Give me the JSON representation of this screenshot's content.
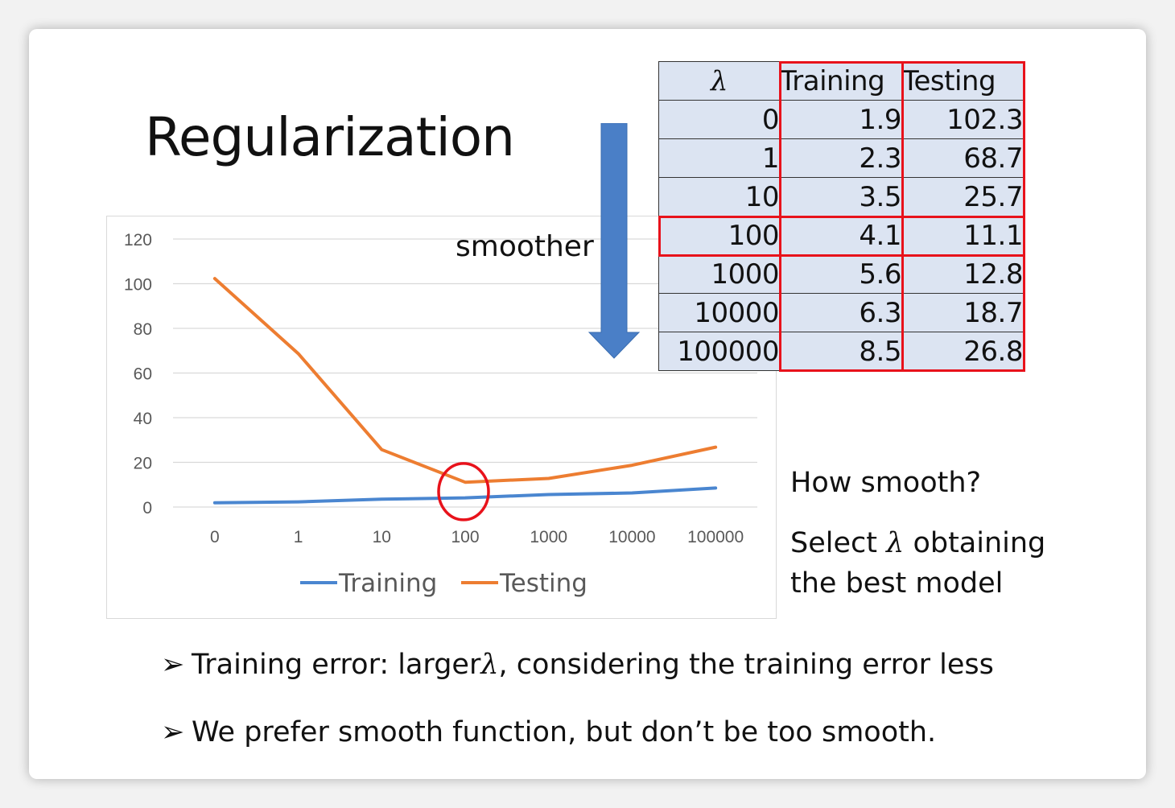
{
  "title": "Regularization",
  "smoother_label": "smoother",
  "table": {
    "headers": [
      "λ",
      "Training",
      "Testing"
    ],
    "rows": [
      [
        "0",
        "1.9",
        "102.3"
      ],
      [
        "1",
        "2.3",
        "68.7"
      ],
      [
        "10",
        "3.5",
        "25.7"
      ],
      [
        "100",
        "4.1",
        "11.1"
      ],
      [
        "1000",
        "5.6",
        "12.8"
      ],
      [
        "10000",
        "6.3",
        "18.7"
      ],
      [
        "100000",
        "8.5",
        "26.8"
      ]
    ],
    "highlighted_row": "100",
    "highlighted_columns": [
      "Training",
      "Testing"
    ]
  },
  "side_question": "How smooth?",
  "side_select": {
    "prefix": "Select",
    "lambda": "λ",
    "suffix": " obtaining",
    "line2": "the best model"
  },
  "bullets": [
    {
      "marker": "➢",
      "text": "Training error: larger",
      "lambda": "λ",
      "rest": ", considering the training error less"
    },
    {
      "marker": "➢",
      "text": "We prefer smooth function, but don’t be too smooth.",
      "lambda": "",
      "rest": ""
    }
  ],
  "colors": {
    "training": "#4a86d0",
    "testing": "#ed7d31",
    "table_fill": "#dce4f2",
    "highlight": "#e8121b",
    "arrow": "#4a7fc7"
  },
  "chart_data": {
    "type": "line",
    "categories": [
      "0",
      "1",
      "10",
      "100",
      "1000",
      "10000",
      "100000"
    ],
    "series": [
      {
        "name": "Training",
        "values": [
          1.9,
          2.3,
          3.5,
          4.1,
          5.6,
          6.3,
          8.5
        ]
      },
      {
        "name": "Testing",
        "values": [
          102.3,
          68.7,
          25.7,
          11.1,
          12.8,
          18.7,
          26.8
        ]
      }
    ],
    "ylim": [
      0,
      120
    ],
    "yticks": [
      "0",
      "20",
      "40",
      "60",
      "80",
      "100",
      "120"
    ],
    "grid": true,
    "legend": "bottom",
    "highlight_category": "100"
  }
}
